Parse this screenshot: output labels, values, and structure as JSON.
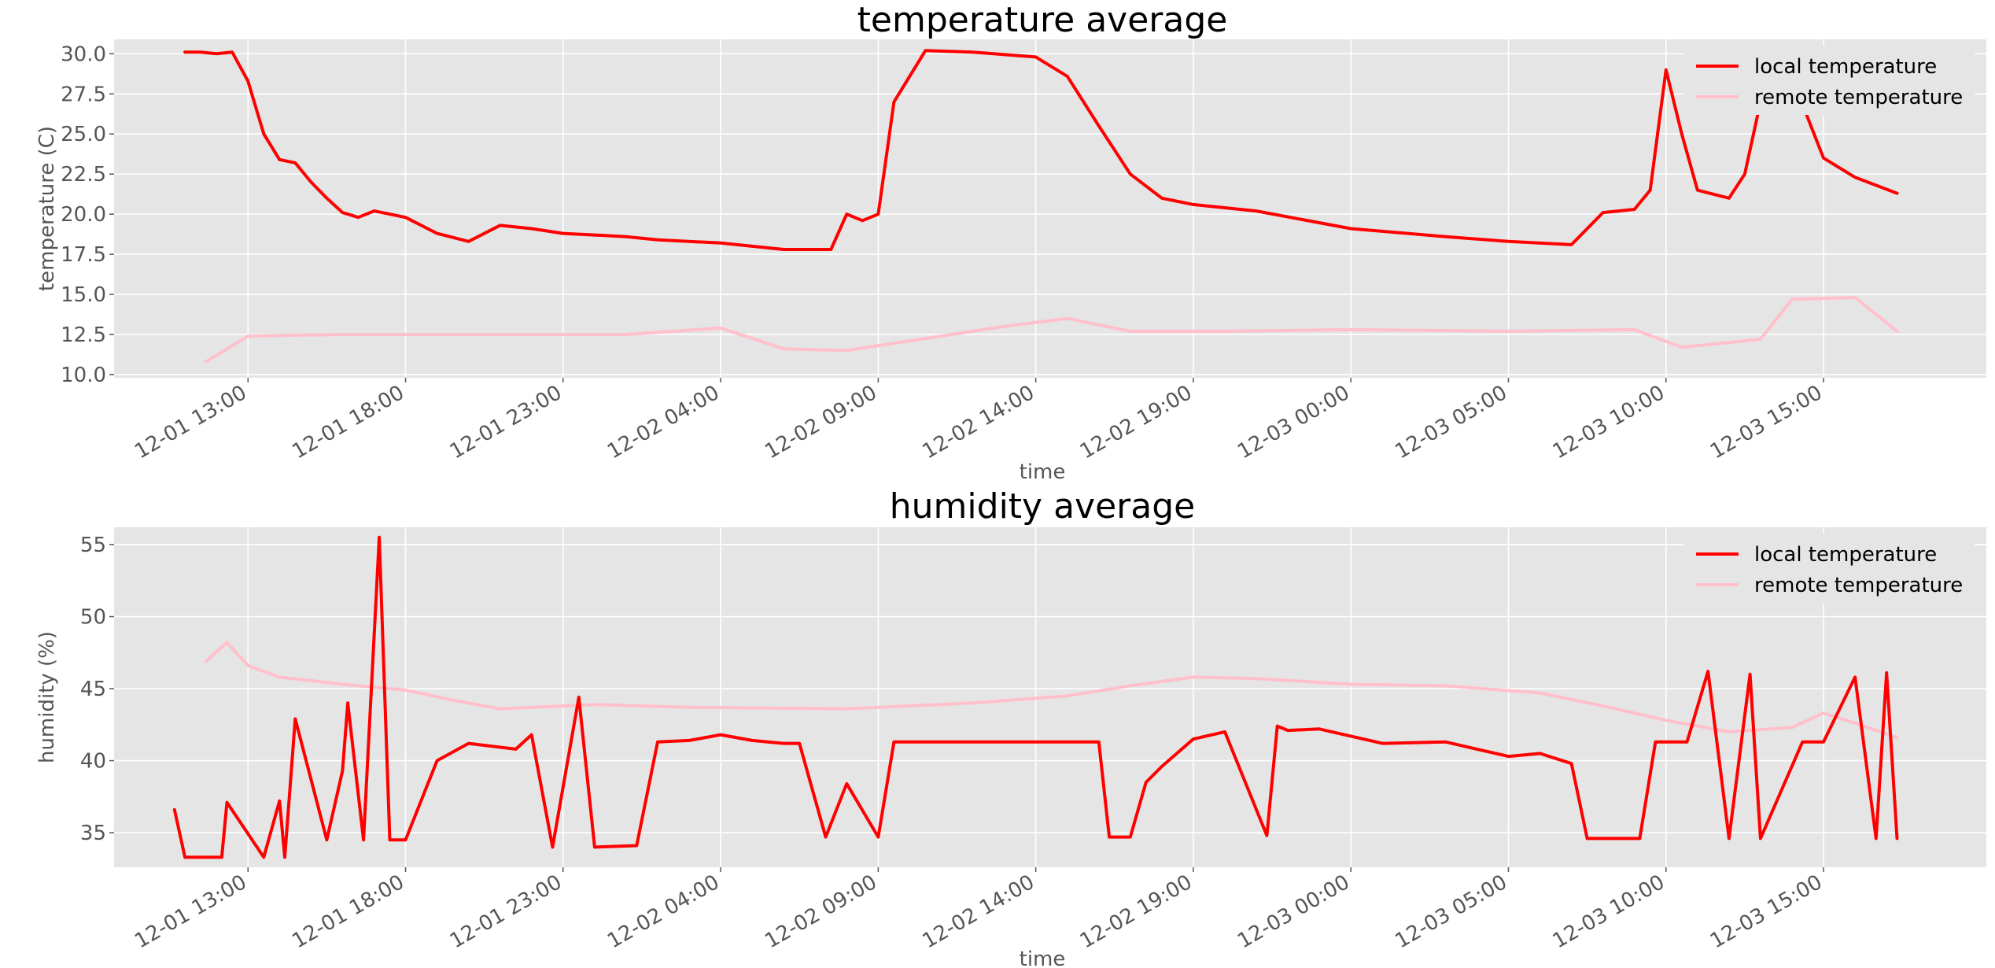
{
  "chart_data": [
    {
      "type": "line",
      "title": "temperature average",
      "xlabel": "time",
      "ylabel": "temperature (C)",
      "ylim": [
        9.8,
        30.9
      ],
      "xlim": [
        "2022-12-01 08:45",
        "2022-12-03 20:10"
      ],
      "x_ticks": [
        "12-01 13:00",
        "12-01 18:00",
        "12-01 23:00",
        "12-02 04:00",
        "12-02 09:00",
        "12-02 14:00",
        "12-02 19:00",
        "12-03 00:00",
        "12-03 05:00",
        "12-03 10:00",
        "12-03 15:00"
      ],
      "y_ticks": [
        "10.0",
        "12.5",
        "15.0",
        "17.5",
        "20.0",
        "22.5",
        "25.0",
        "27.5",
        "30.0"
      ],
      "grid": true,
      "legend_position": "top-right",
      "legend": [
        "local temperature",
        "remote temperature"
      ],
      "series": [
        {
          "name": "local temperature",
          "color": "#ff0000",
          "x": [
            "2022-12-01 11:00",
            "2022-12-01 11:30",
            "2022-12-01 12:00",
            "2022-12-01 12:30",
            "2022-12-01 13:00",
            "2022-12-01 13:30",
            "2022-12-01 14:00",
            "2022-12-01 14:30",
            "2022-12-01 15:00",
            "2022-12-01 15:30",
            "2022-12-01 16:00",
            "2022-12-01 16:30",
            "2022-12-01 17:00",
            "2022-12-01 17:30",
            "2022-12-01 18:00",
            "2022-12-01 19:00",
            "2022-12-01 20:00",
            "2022-12-01 21:00",
            "2022-12-01 22:00",
            "2022-12-01 23:00",
            "2022-12-02 00:00",
            "2022-12-02 01:00",
            "2022-12-02 02:00",
            "2022-12-02 04:00",
            "2022-12-02 06:00",
            "2022-12-02 07:30",
            "2022-12-02 08:00",
            "2022-12-02 08:30",
            "2022-12-02 09:00",
            "2022-12-02 09:30",
            "2022-12-02 10:30",
            "2022-12-02 12:00",
            "2022-12-02 14:00",
            "2022-12-02 15:00",
            "2022-12-02 16:00",
            "2022-12-02 17:00",
            "2022-12-02 18:00",
            "2022-12-02 19:00",
            "2022-12-02 21:00",
            "2022-12-03 00:00",
            "2022-12-03 03:00",
            "2022-12-03 05:00",
            "2022-12-03 07:00",
            "2022-12-03 08:00",
            "2022-12-03 09:00",
            "2022-12-03 09:30",
            "2022-12-03 10:00",
            "2022-12-03 10:30",
            "2022-12-03 11:00",
            "2022-12-03 12:00",
            "2022-12-03 12:30",
            "2022-12-03 13:00",
            "2022-12-03 14:00",
            "2022-12-03 15:00",
            "2022-12-03 16:00",
            "2022-12-03 17:20"
          ],
          "values": [
            30.1,
            30.1,
            30.0,
            30.1,
            28.3,
            25.0,
            23.4,
            23.2,
            22.0,
            21.0,
            20.1,
            19.8,
            20.2,
            20.0,
            19.8,
            18.8,
            18.3,
            19.3,
            19.1,
            18.8,
            18.7,
            18.6,
            18.4,
            18.2,
            17.8,
            17.8,
            20.0,
            19.6,
            20.0,
            27.0,
            30.2,
            30.1,
            29.8,
            28.6,
            25.5,
            22.5,
            21.0,
            20.6,
            20.2,
            19.1,
            18.6,
            18.3,
            18.1,
            20.1,
            20.3,
            21.5,
            29.0,
            25.0,
            21.5,
            21.0,
            22.5,
            27.0,
            28.5,
            23.5,
            22.3,
            21.3
          ]
        },
        {
          "name": "remote temperature",
          "color": "#ffc0cb",
          "x": [
            "2022-12-01 11:40",
            "2022-12-01 13:00",
            "2022-12-01 16:00",
            "2022-12-01 21:00",
            "2022-12-02 01:00",
            "2022-12-02 04:00",
            "2022-12-02 06:00",
            "2022-12-02 08:00",
            "2022-12-02 10:00",
            "2022-12-02 13:00",
            "2022-12-02 15:00",
            "2022-12-02 17:00",
            "2022-12-02 20:00",
            "2022-12-03 00:00",
            "2022-12-03 05:00",
            "2022-12-03 09:00",
            "2022-12-03 10:30",
            "2022-12-03 13:00",
            "2022-12-03 14:00",
            "2022-12-03 16:00",
            "2022-12-03 17:20"
          ],
          "values": [
            10.8,
            12.4,
            12.5,
            12.5,
            12.5,
            12.9,
            11.6,
            11.5,
            12.1,
            13.0,
            13.5,
            12.7,
            12.7,
            12.8,
            12.7,
            12.8,
            11.7,
            12.2,
            14.7,
            14.8,
            12.7
          ]
        }
      ]
    },
    {
      "type": "line",
      "title": "humidity average",
      "xlabel": "time",
      "ylabel": "humidity (%)",
      "ylim": [
        32.6,
        56.2
      ],
      "xlim": [
        "2022-12-01 08:45",
        "2022-12-03 20:10"
      ],
      "x_ticks": [
        "12-01 13:00",
        "12-01 18:00",
        "12-01 23:00",
        "12-02 04:00",
        "12-02 09:00",
        "12-02 14:00",
        "12-02 19:00",
        "12-03 00:00",
        "12-03 05:00",
        "12-03 10:00",
        "12-03 15:00"
      ],
      "y_ticks": [
        "35",
        "40",
        "45",
        "50",
        "55"
      ],
      "grid": true,
      "legend_position": "top-right",
      "legend": [
        "local temperature",
        "remote temperature"
      ],
      "series": [
        {
          "name": "local temperature",
          "color": "#ff0000",
          "x": [
            "2022-12-01 10:40",
            "2022-12-01 11:00",
            "2022-12-01 12:10",
            "2022-12-01 12:20",
            "2022-12-01 13:30",
            "2022-12-01 14:00",
            "2022-12-01 14:10",
            "2022-12-01 14:30",
            "2022-12-01 15:30",
            "2022-12-01 16:00",
            "2022-12-01 16:10",
            "2022-12-01 16:40",
            "2022-12-01 17:10",
            "2022-12-01 17:30",
            "2022-12-01 18:00",
            "2022-12-01 19:00",
            "2022-12-01 20:00",
            "2022-12-01 21:30",
            "2022-12-01 22:00",
            "2022-12-01 22:40",
            "2022-12-01 23:30",
            "2022-12-02 00:00",
            "2022-12-02 01:20",
            "2022-12-02 02:00",
            "2022-12-02 03:00",
            "2022-12-02 04:00",
            "2022-12-02 05:00",
            "2022-12-02 06:00",
            "2022-12-02 06:30",
            "2022-12-02 07:20",
            "2022-12-02 08:00",
            "2022-12-02 09:00",
            "2022-12-02 09:30",
            "2022-12-02 16:00",
            "2022-12-02 16:20",
            "2022-12-02 17:00",
            "2022-12-02 17:30",
            "2022-12-02 18:00",
            "2022-12-02 19:00",
            "2022-12-02 20:00",
            "2022-12-02 21:20",
            "2022-12-02 21:40",
            "2022-12-02 22:00",
            "2022-12-02 23:00",
            "2022-12-03 01:00",
            "2022-12-03 03:00",
            "2022-12-03 04:00",
            "2022-12-03 05:00",
            "2022-12-03 06:00",
            "2022-12-03 07:00",
            "2022-12-03 07:30",
            "2022-12-03 09:10",
            "2022-12-03 09:40",
            "2022-12-03 10:40",
            "2022-12-03 11:20",
            "2022-12-03 12:00",
            "2022-12-03 12:40",
            "2022-12-03 13:00",
            "2022-12-03 14:20",
            "2022-12-03 15:00",
            "2022-12-03 16:00",
            "2022-12-03 16:40",
            "2022-12-03 17:00",
            "2022-12-03 17:20"
          ],
          "values": [
            36.6,
            33.3,
            33.3,
            37.1,
            33.3,
            37.2,
            33.3,
            42.9,
            34.5,
            39.3,
            44.0,
            34.5,
            55.5,
            34.5,
            34.5,
            40.0,
            41.2,
            40.8,
            41.8,
            34.0,
            44.4,
            34.0,
            34.1,
            41.3,
            41.4,
            41.8,
            41.4,
            41.2,
            41.2,
            34.7,
            38.4,
            34.7,
            41.3,
            41.3,
            34.7,
            34.7,
            38.5,
            39.6,
            41.5,
            42.0,
            34.8,
            42.4,
            42.1,
            42.2,
            41.2,
            41.3,
            40.8,
            40.3,
            40.5,
            39.8,
            34.6,
            34.6,
            41.3,
            41.3,
            46.2,
            34.6,
            46.0,
            34.6,
            41.3,
            41.3,
            45.8,
            34.6,
            46.1,
            34.6
          ]
        },
        {
          "name": "remote temperature",
          "color": "#ffc0cb",
          "x": [
            "2022-12-01 11:40",
            "2022-12-01 12:20",
            "2022-12-01 13:00",
            "2022-12-01 14:00",
            "2022-12-01 16:00",
            "2022-12-01 18:00",
            "2022-12-01 19:30",
            "2022-12-01 21:00",
            "2022-12-02 00:00",
            "2022-12-02 03:00",
            "2022-12-02 08:00",
            "2022-12-02 12:00",
            "2022-12-02 15:00",
            "2022-12-02 17:00",
            "2022-12-02 19:00",
            "2022-12-02 21:00",
            "2022-12-03 00:00",
            "2022-12-03 03:00",
            "2022-12-03 06:00",
            "2022-12-03 08:00",
            "2022-12-03 10:00",
            "2022-12-03 12:00",
            "2022-12-03 14:00",
            "2022-12-03 15:00",
            "2022-12-03 16:00",
            "2022-12-03 17:20"
          ],
          "values": [
            46.9,
            48.2,
            46.6,
            45.8,
            45.3,
            44.9,
            44.2,
            43.6,
            43.9,
            43.7,
            43.6,
            44.0,
            44.5,
            45.2,
            45.8,
            45.7,
            45.3,
            45.2,
            44.7,
            43.8,
            42.8,
            42.0,
            42.3,
            43.3,
            42.6,
            41.6
          ]
        }
      ]
    }
  ]
}
